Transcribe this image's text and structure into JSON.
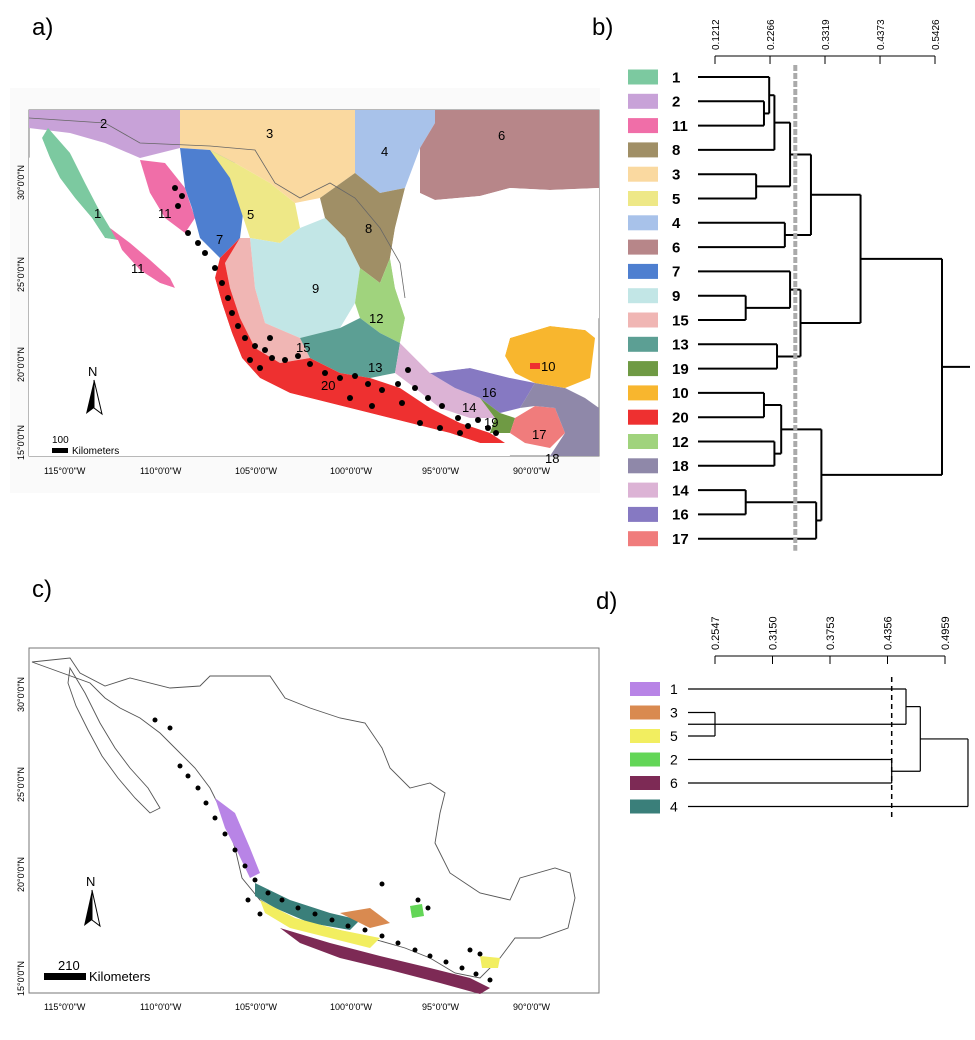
{
  "panel_a": {
    "letter": "a)",
    "lon_labels": [
      "115°0'0\"W",
      "110°0'0\"W",
      "105°0'0\"W",
      "100°0'0\"W",
      "95°0'0\"W",
      "90°0'0\"W"
    ],
    "lat_labels": [
      "30°0'0\"N",
      "25°0'0\"N",
      "20°0'0\"N",
      "15°0'0\"N"
    ],
    "region_labels": [
      "1",
      "2",
      "3",
      "4",
      "5",
      "6",
      "7",
      "8",
      "9",
      "10",
      "11",
      "11",
      "12",
      "13",
      "14",
      "15",
      "16",
      "17",
      "18",
      "19",
      "20"
    ],
    "north": "N",
    "scale_value": "100",
    "scale_unit": "Kilometers"
  },
  "panel_b": {
    "letter": "b)",
    "axis_ticks": [
      "0.1212",
      "0.2266",
      "0.3319",
      "0.4373",
      "0.5426"
    ],
    "cutoff": 0.275,
    "leaves": [
      {
        "label": "1",
        "color": "#7cc9a0"
      },
      {
        "label": "2",
        "color": "#c8a2d8"
      },
      {
        "label": "11",
        "color": "#f06ea8"
      },
      {
        "label": "8",
        "color": "#a08f66"
      },
      {
        "label": "3",
        "color": "#fad9a0"
      },
      {
        "label": "5",
        "color": "#eee887"
      },
      {
        "label": "4",
        "color": "#a8c2ea"
      },
      {
        "label": "6",
        "color": "#b78689"
      },
      {
        "label": "7",
        "color": "#4e7fd0"
      },
      {
        "label": "9",
        "color": "#c2e6e6"
      },
      {
        "label": "15",
        "color": "#f0b6b4"
      },
      {
        "label": "13",
        "color": "#5c9f94"
      },
      {
        "label": "19",
        "color": "#6f9a44"
      },
      {
        "label": "10",
        "color": "#f8b62e"
      },
      {
        "label": "20",
        "color": "#ee3030"
      },
      {
        "label": "12",
        "color": "#a0d37d"
      },
      {
        "label": "18",
        "color": "#8f88a9"
      },
      {
        "label": "14",
        "color": "#dcb3d5"
      },
      {
        "label": "16",
        "color": "#8679c2"
      },
      {
        "label": "17",
        "color": "#f07c7c"
      }
    ]
  },
  "panel_c": {
    "letter": "c)",
    "lon_labels": [
      "115°0'0\"W",
      "110°0'0\"W",
      "105°0'0\"W",
      "100°0'0\"W",
      "95°0'0\"W",
      "90°0'0\"W"
    ],
    "lat_labels": [
      "30°0'0\"N",
      "25°0'0\"N",
      "20°0'0\"N",
      "15°0'0\"N"
    ],
    "north": "N",
    "scale_value": "210",
    "scale_unit": "Kilometers"
  },
  "panel_d": {
    "letter": "d)",
    "axis_ticks": [
      "0.2547",
      "0.3150",
      "0.3753",
      "0.4356",
      "0.4959"
    ],
    "cutoff": 0.44,
    "leaves": [
      {
        "label": "1",
        "color": "#b884e6"
      },
      {
        "label": "3",
        "color": "#d98a50"
      },
      {
        "label": "5",
        "color": "#f2ee60"
      },
      {
        "label": "2",
        "color": "#63d657"
      },
      {
        "label": "6",
        "color": "#7d2a55"
      },
      {
        "label": "4",
        "color": "#3a7f7a"
      }
    ]
  }
}
